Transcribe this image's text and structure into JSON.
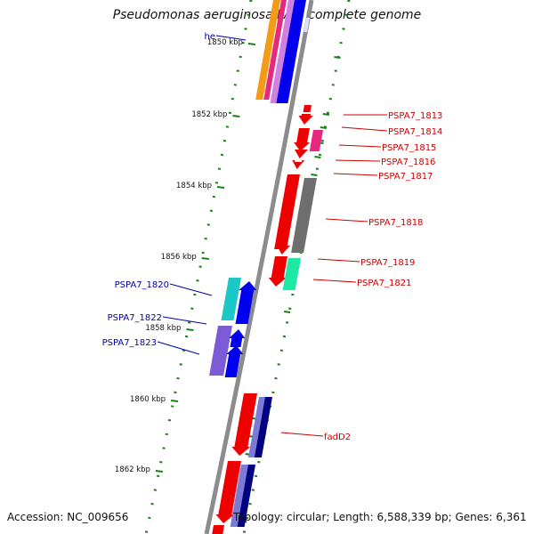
{
  "title": "Pseudomonas aeruginosa PA7, complete genome",
  "footer": {
    "accession": "Accession: NC_009656",
    "summary": "Topology: circular; Length: 6,588,339 bp; Genes: 6,361"
  },
  "colors": {
    "backbone": "#8c8c8c",
    "tick": "#1a7f1a",
    "forward_label": "#cc0000",
    "reverse_label": "#0000aa"
  },
  "scale": {
    "unit": "kbp",
    "major_ticks": [
      {
        "position_kbp": 1850,
        "label": "1850 kbp"
      },
      {
        "position_kbp": 1852,
        "label": "1852 kbp"
      },
      {
        "position_kbp": 1854,
        "label": "1854 kbp"
      },
      {
        "position_kbp": 1856,
        "label": "1856 kbp"
      },
      {
        "position_kbp": 1858,
        "label": "1858 kbp"
      },
      {
        "position_kbp": 1860,
        "label": "1860 kbp"
      },
      {
        "position_kbp": 1862,
        "label": "1862 kbp"
      }
    ]
  },
  "gene_labels": {
    "forward": [
      "PSPA7_1813",
      "PSPA7_1814",
      "PSPA7_1815",
      "PSPA7_1816",
      "PSPA7_1817",
      "PSPA7_1818",
      "PSPA7_1819",
      "PSPA7_1821",
      "fadD2"
    ],
    "reverse": [
      "he",
      "PSPA7_1820",
      "PSPA7_1822",
      "PSPA7_1823"
    ]
  }
}
